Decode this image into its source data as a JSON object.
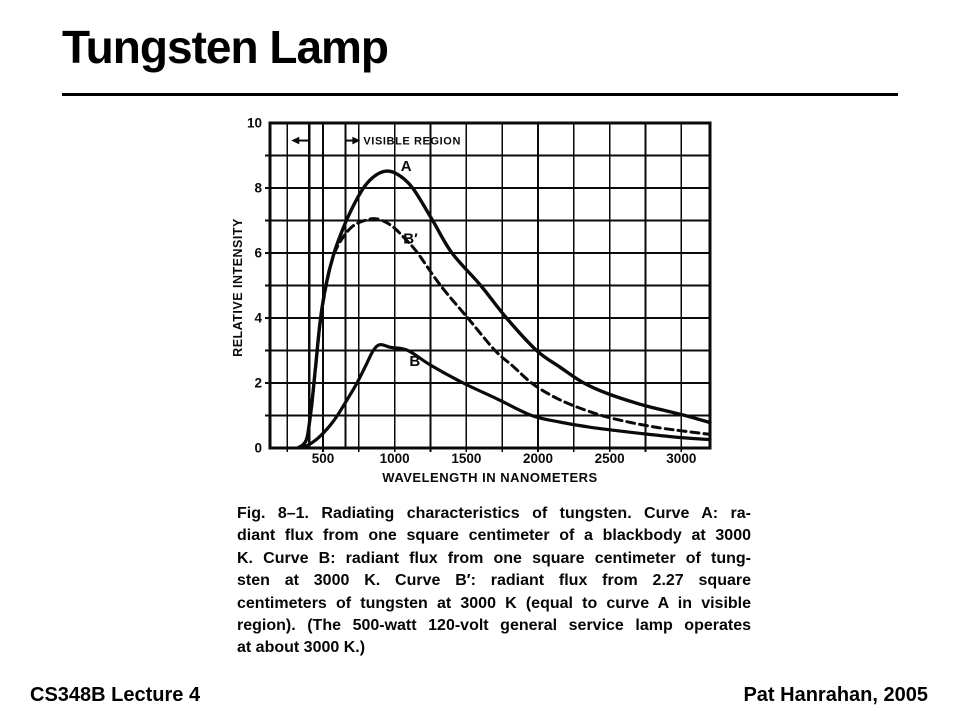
{
  "slide": {
    "title": "Tungsten Lamp",
    "footer_left": "CS348B Lecture 4",
    "footer_right": "Pat Hanrahan, 2005",
    "background_color": "#ffffff",
    "ink_color": "#0a0a0a"
  },
  "figure": {
    "caption_lines": [
      "Fig. 8–1. Radiating characteristics of tungsten. Curve A: ra-",
      "diant flux from one square centimeter of a blackbody at 3000",
      "K. Curve B: radiant flux from one square centimeter of tung-",
      "sten at 3000 K. Curve B′: radiant flux from 2.27 square",
      "centimeters of tungsten at 3000 K (equal to curve A in visible",
      "region). (The 500-watt 120-volt general service lamp operates",
      "at about 3000 K.)"
    ]
  },
  "chart_data": {
    "type": "line",
    "title": "",
    "xlabel": "WAVELENGTH IN NANOMETERS",
    "ylabel": "RELATIVE INTENSITY",
    "xlim": [
      130,
      3200
    ],
    "ylim": [
      0,
      10
    ],
    "x_ticks": [
      500,
      1000,
      1500,
      2000,
      2500,
      3000
    ],
    "y_ticks": [
      0,
      2,
      4,
      6,
      8,
      10
    ],
    "x_grid_step": 250,
    "y_grid_step": 1,
    "grid": true,
    "legend_position": "none",
    "visible_region": {
      "label": "VISIBLE REGION",
      "from_nm": 404,
      "to_nm": 656,
      "marker_intensity": 9.46
    },
    "series": [
      {
        "name": "A",
        "description": "radiant flux from one square centimeter of a blackbody at 3000 K",
        "style": "solid",
        "label_at": {
          "x": 1080,
          "y": 8.52
        },
        "points": [
          [
            330,
            0.02
          ],
          [
            360,
            0.1
          ],
          [
            390,
            0.35
          ],
          [
            420,
            1.3
          ],
          [
            450,
            2.6
          ],
          [
            480,
            3.9
          ],
          [
            520,
            5.0
          ],
          [
            570,
            5.9
          ],
          [
            630,
            6.65
          ],
          [
            700,
            7.35
          ],
          [
            790,
            8.05
          ],
          [
            870,
            8.4
          ],
          [
            945,
            8.52
          ],
          [
            1020,
            8.42
          ],
          [
            1125,
            8.0
          ],
          [
            1265,
            7.0
          ],
          [
            1400,
            6.0
          ],
          [
            1600,
            5.0
          ],
          [
            1780,
            4.0
          ],
          [
            1990,
            3.0
          ],
          [
            2150,
            2.5
          ],
          [
            2320,
            2.0
          ],
          [
            2500,
            1.65
          ],
          [
            2750,
            1.3
          ],
          [
            3000,
            1.03
          ],
          [
            3200,
            0.78
          ]
        ]
      },
      {
        "name": "B′",
        "description": "radiant flux from 2.27 square centimeters of tungsten at 3000 K (equal to curve A in visible region)",
        "style": "dashed",
        "label_at": {
          "x": 1110,
          "y": 6.3
        },
        "points": [
          [
            420,
            1.25
          ],
          [
            450,
            2.55
          ],
          [
            480,
            3.85
          ],
          [
            520,
            4.95
          ],
          [
            565,
            5.8
          ],
          [
            620,
            6.35
          ],
          [
            700,
            6.8
          ],
          [
            790,
            7.0
          ],
          [
            875,
            7.05
          ],
          [
            975,
            6.85
          ],
          [
            1070,
            6.45
          ],
          [
            1160,
            6.0
          ],
          [
            1320,
            5.0
          ],
          [
            1510,
            4.0
          ],
          [
            1700,
            3.0
          ],
          [
            1830,
            2.5
          ],
          [
            1955,
            2.0
          ],
          [
            2100,
            1.6
          ],
          [
            2250,
            1.3
          ],
          [
            2445,
            1.0
          ],
          [
            2650,
            0.78
          ],
          [
            2850,
            0.62
          ],
          [
            3000,
            0.53
          ],
          [
            3200,
            0.42
          ]
        ]
      },
      {
        "name": "B",
        "description": "radiant flux from one square centimeter of tungsten at 3000 K",
        "style": "solid",
        "label_at": {
          "x": 1140,
          "y": 2.52
        },
        "points": [
          [
            350,
            0.02
          ],
          [
            400,
            0.1
          ],
          [
            450,
            0.25
          ],
          [
            500,
            0.45
          ],
          [
            550,
            0.7
          ],
          [
            600,
            1.0
          ],
          [
            670,
            1.5
          ],
          [
            737,
            2.0
          ],
          [
            800,
            2.55
          ],
          [
            851,
            3.0
          ],
          [
            897,
            3.18
          ],
          [
            970,
            3.1
          ],
          [
            1092,
            3.0
          ],
          [
            1250,
            2.55
          ],
          [
            1478,
            2.0
          ],
          [
            1720,
            1.5
          ],
          [
            1956,
            1.0
          ],
          [
            2150,
            0.8
          ],
          [
            2350,
            0.65
          ],
          [
            2500,
            0.56
          ],
          [
            2750,
            0.43
          ],
          [
            3000,
            0.32
          ],
          [
            3200,
            0.26
          ]
        ]
      }
    ]
  }
}
